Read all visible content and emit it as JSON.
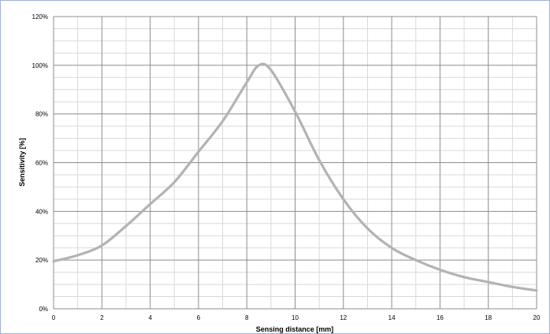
{
  "chart_data": {
    "type": "line",
    "xlabel": "Sensing distance [mm]",
    "ylabel": "Sensitivity [%]",
    "xlim": [
      0,
      20
    ],
    "ylim": [
      0,
      120
    ],
    "x_ticks": [
      0,
      2,
      4,
      6,
      8,
      10,
      12,
      14,
      16,
      18,
      20
    ],
    "y_ticks": [
      0,
      20,
      40,
      60,
      80,
      100,
      120
    ],
    "y_tick_labels": [
      "0%",
      "20%",
      "40%",
      "60%",
      "80%",
      "100%",
      "120%"
    ],
    "grid": true,
    "series_color": "#b3b3b3",
    "series": [
      {
        "x": [
          0,
          1,
          2,
          3,
          4,
          5,
          6,
          7,
          8,
          8.5,
          9,
          10,
          11,
          12,
          13,
          14,
          15,
          16,
          17,
          18,
          19,
          20
        ],
        "values": [
          19.5,
          22,
          26,
          34,
          43,
          52,
          64.5,
          77,
          93,
          100,
          98,
          81,
          61,
          45,
          33,
          25,
          20,
          16,
          13,
          11,
          9,
          7.5
        ]
      }
    ]
  }
}
